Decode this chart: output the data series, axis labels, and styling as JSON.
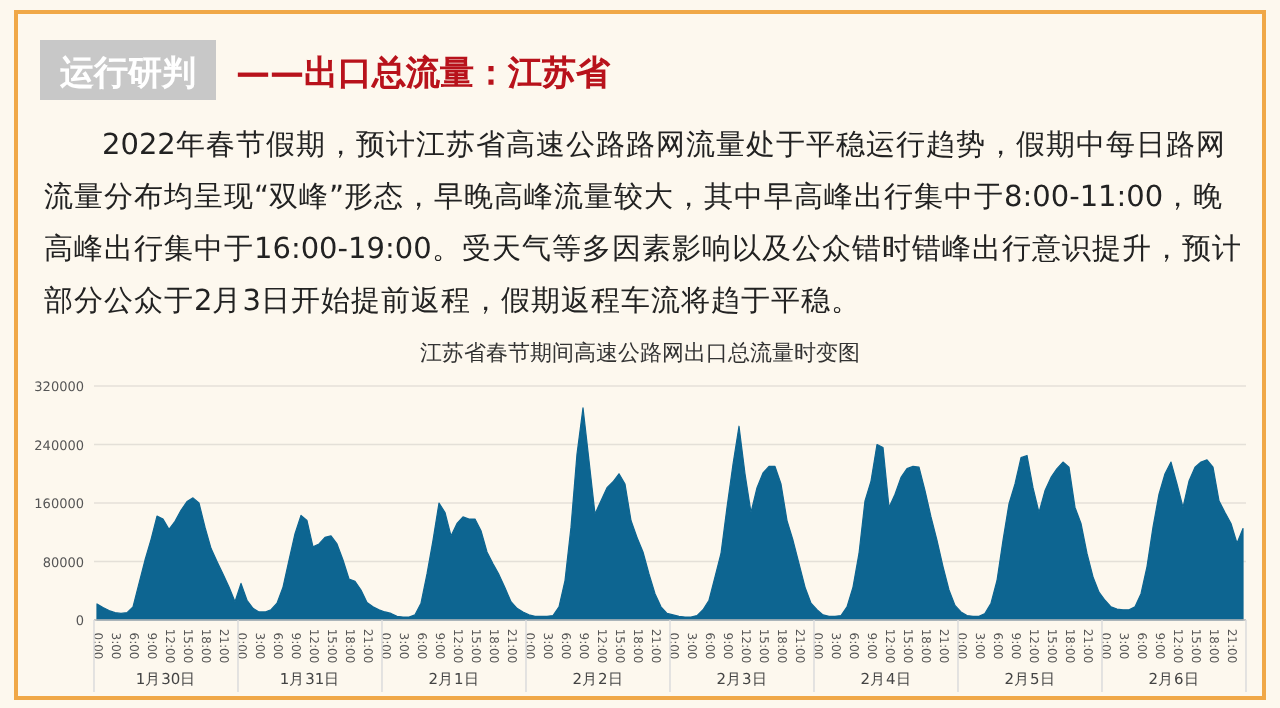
{
  "chart_data": {
    "type": "area",
    "title": "江苏省春节期间高速公路网出口总流量时变图",
    "annotations": [
      "运行研判",
      "——出口总流量：江苏省",
      "2022年春节假期，预计江苏省高速公路路网流量处于平稳运行趋势，假期中每日路网流量分布均呈现“双峰”形态，早晚高峰流量较大，其中早高峰出行集中于8:00-11:00，晚高峰出行集中于16:00-19:00。受天气等多因素影响以及公众错时错峰出行意识提升，预计部分公众于2月3日开始提前返程，假期返程车流将趋于平稳。",
      "1月30日",
      "1月31日",
      "2月1日",
      "2月2日",
      "2月3日",
      "2月4日",
      "2月5日",
      "2月6日"
    ],
    "color": "#0d6591",
    "grid": "y",
    "ylim": [
      0,
      320000
    ],
    "yticks": [
      0,
      80000,
      160000,
      240000,
      320000
    ],
    "categories": [
      "0:00",
      null,
      null,
      "3:00",
      null,
      null,
      "6:00",
      null,
      null,
      "9:00",
      null,
      null,
      "12:00",
      null,
      null,
      "15:00",
      null,
      null,
      "18:00",
      null,
      null,
      "21:00",
      null,
      null,
      "0:00",
      null,
      null,
      "3:00",
      null,
      null,
      "6:00",
      null,
      null,
      "9:00",
      null,
      null,
      "12:00",
      null,
      null,
      "15:00",
      null,
      null,
      "18:00",
      null,
      null,
      "21:00",
      null,
      null,
      "0:00",
      null,
      null,
      "3:00",
      null,
      null,
      "6:00",
      null,
      null,
      "9:00",
      null,
      null,
      "12:00",
      null,
      null,
      "15:00",
      null,
      null,
      "18:00",
      null,
      null,
      "21:00",
      null,
      null,
      "0:00",
      null,
      null,
      "3:00",
      null,
      null,
      "6:00",
      null,
      null,
      "9:00",
      null,
      null,
      "12:00",
      null,
      null,
      "15:00",
      null,
      null,
      "18:00",
      null,
      null,
      "21:00",
      null,
      null,
      "0:00",
      null,
      null,
      "3:00",
      null,
      null,
      "6:00",
      null,
      null,
      "9:00",
      null,
      null,
      "12:00",
      null,
      null,
      "15:00",
      null,
      null,
      "18:00",
      null,
      null,
      "21:00",
      null,
      null,
      "0:00",
      null,
      null,
      "3:00",
      null,
      null,
      "6:00",
      null,
      null,
      "9:00",
      null,
      null,
      "12:00",
      null,
      null,
      "15:00",
      null,
      null,
      "18:00",
      null,
      null,
      "21:00",
      null,
      null,
      "0:00",
      null,
      null,
      "3:00",
      null,
      null,
      "6:00",
      null,
      null,
      "9:00",
      null,
      null,
      "12:00",
      null,
      null,
      "15:00",
      null,
      null,
      "18:00",
      null,
      null,
      "21:00",
      null,
      null,
      "0:00",
      null,
      null,
      "3:00",
      null,
      null,
      "6:00",
      null,
      null,
      "9:00",
      null,
      null,
      "12:00",
      null,
      null,
      "15:00",
      null,
      null,
      "18:00",
      null,
      null,
      "21:00",
      null,
      null
    ],
    "values": [
      22000,
      17000,
      13000,
      10000,
      9000,
      10000,
      18000,
      50000,
      82000,
      110000,
      142000,
      138000,
      124000,
      135000,
      150000,
      162000,
      167000,
      160000,
      127000,
      98000,
      80000,
      63000,
      45000,
      25000,
      50000,
      27000,
      16000,
      11000,
      11000,
      14000,
      23000,
      45000,
      82000,
      118000,
      143000,
      136000,
      100000,
      104000,
      113000,
      115000,
      104000,
      82000,
      56000,
      53000,
      41000,
      24000,
      18000,
      14000,
      11000,
      9000,
      5000,
      4000,
      4000,
      7000,
      23000,
      63000,
      109000,
      160000,
      147000,
      115000,
      132000,
      141000,
      138000,
      138000,
      122000,
      93000,
      77000,
      62000,
      44000,
      25000,
      16000,
      11000,
      7000,
      5000,
      5000,
      5000,
      6000,
      18000,
      54000,
      127000,
      227000,
      290000,
      218000,
      145000,
      163000,
      181000,
      189000,
      200000,
      186000,
      136000,
      113000,
      93000,
      63000,
      36000,
      18000,
      9000,
      7000,
      5000,
      4000,
      4000,
      6000,
      14000,
      27000,
      59000,
      91000,
      154000,
      213000,
      265000,
      200000,
      147000,
      181000,
      201000,
      210000,
      210000,
      186000,
      136000,
      109000,
      77000,
      45000,
      23000,
      14000,
      7000,
      5000,
      5000,
      6000,
      18000,
      45000,
      91000,
      163000,
      190000,
      240000,
      236000,
      154000,
      172000,
      195000,
      207000,
      210000,
      209000,
      177000,
      141000,
      109000,
      73000,
      41000,
      20000,
      11000,
      6000,
      5000,
      5000,
      9000,
      23000,
      54000,
      109000,
      159000,
      186000,
      222000,
      225000,
      181000,
      147000,
      177000,
      195000,
      207000,
      216000,
      209000,
      154000,
      132000,
      91000,
      59000,
      38000,
      27000,
      18000,
      15000,
      14000,
      14000,
      18000,
      36000,
      73000,
      127000,
      172000,
      200000,
      216000,
      186000,
      154000,
      190000,
      209000,
      216000,
      219000,
      209000,
      163000,
      147000,
      132000,
      105000,
      125000
    ]
  }
}
